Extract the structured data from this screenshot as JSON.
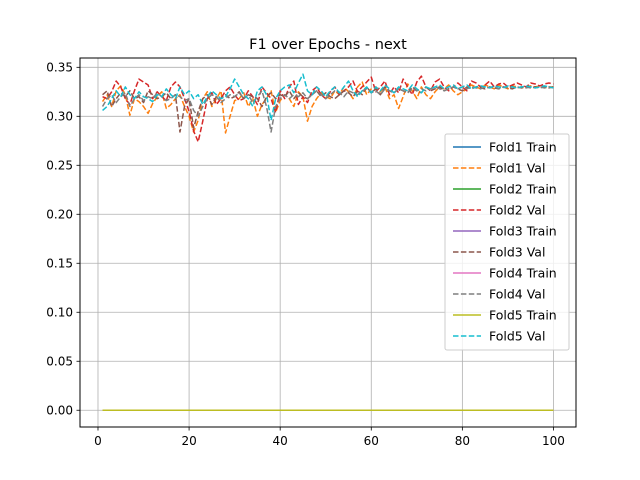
{
  "chart_data": {
    "type": "line",
    "title": "F1 over Epochs - next",
    "xlabel": "",
    "ylabel": "",
    "xlim": [
      -3.95,
      104.95
    ],
    "ylim": [
      -0.0171,
      0.3595
    ],
    "xticks": [
      0,
      20,
      40,
      60,
      80,
      100
    ],
    "xtick_labels": [
      "0",
      "20",
      "40",
      "60",
      "80",
      "100"
    ],
    "yticks": [
      0.0,
      0.05,
      0.1,
      0.15,
      0.2,
      0.25,
      0.3,
      0.35
    ],
    "ytick_labels": [
      "0.00",
      "0.05",
      "0.10",
      "0.15",
      "0.20",
      "0.25",
      "0.30",
      "0.35"
    ],
    "grid": true,
    "legend_position": "center-right",
    "x_range": [
      1,
      100
    ],
    "train_value": 0.0,
    "series": [
      {
        "name": "Fold1 Train",
        "color": "#1f77b4",
        "dash": "solid",
        "values": [
          0
        ]
      },
      {
        "name": "Fold1 Val",
        "color": "#ff7f0e",
        "dash": "dashed",
        "values": [
          0.315,
          0.322,
          0.31,
          0.326,
          0.331,
          0.322,
          0.301,
          0.318,
          0.315,
          0.31,
          0.303,
          0.313,
          0.32,
          0.325,
          0.308,
          0.312,
          0.318,
          0.322,
          0.31,
          0.3,
          0.284,
          0.296,
          0.318,
          0.325,
          0.31,
          0.318,
          0.326,
          0.283,
          0.3,
          0.316,
          0.318,
          0.324,
          0.31,
          0.318,
          0.3,
          0.312,
          0.318,
          0.326,
          0.304,
          0.316,
          0.322,
          0.318,
          0.31,
          0.325,
          0.32,
          0.295,
          0.31,
          0.318,
          0.324,
          0.32,
          0.318,
          0.326,
          0.322,
          0.33,
          0.325,
          0.318,
          0.33,
          0.335,
          0.322,
          0.328,
          0.33,
          0.325,
          0.33,
          0.318,
          0.322,
          0.308,
          0.32,
          0.333,
          0.326,
          0.318,
          0.33,
          0.322,
          0.318,
          0.325,
          0.33,
          0.328,
          0.332,
          0.326,
          0.322,
          0.325,
          0.328,
          0.332,
          0.33,
          0.328,
          0.332,
          0.33,
          0.328,
          0.332,
          0.33,
          0.328,
          0.331,
          0.33,
          0.329,
          0.33,
          0.331,
          0.33,
          0.331,
          0.329,
          0.33,
          0.33
        ]
      },
      {
        "name": "Fold2 Train",
        "color": "#2ca02c",
        "dash": "solid",
        "values": [
          0
        ]
      },
      {
        "name": "Fold2 Val",
        "color": "#d62728",
        "dash": "dashed",
        "values": [
          0.32,
          0.318,
          0.325,
          0.336,
          0.33,
          0.318,
          0.312,
          0.326,
          0.338,
          0.335,
          0.332,
          0.318,
          0.325,
          0.32,
          0.316,
          0.33,
          0.335,
          0.33,
          0.318,
          0.305,
          0.285,
          0.274,
          0.295,
          0.318,
          0.324,
          0.312,
          0.318,
          0.326,
          0.33,
          0.322,
          0.316,
          0.318,
          0.326,
          0.32,
          0.312,
          0.33,
          0.324,
          0.318,
          0.304,
          0.326,
          0.318,
          0.33,
          0.336,
          0.312,
          0.32,
          0.314,
          0.326,
          0.33,
          0.322,
          0.318,
          0.325,
          0.33,
          0.322,
          0.326,
          0.33,
          0.336,
          0.325,
          0.33,
          0.335,
          0.34,
          0.325,
          0.33,
          0.336,
          0.322,
          0.33,
          0.324,
          0.338,
          0.33,
          0.322,
          0.335,
          0.341,
          0.33,
          0.326,
          0.335,
          0.338,
          0.33,
          0.326,
          0.33,
          0.334,
          0.33,
          0.326,
          0.336,
          0.334,
          0.33,
          0.332,
          0.336,
          0.33,
          0.333,
          0.334,
          0.33,
          0.332,
          0.334,
          0.332,
          0.33,
          0.334,
          0.333,
          0.331,
          0.333,
          0.334,
          0.333
        ]
      },
      {
        "name": "Fold3 Train",
        "color": "#9467bd",
        "dash": "solid",
        "values": [
          0
        ]
      },
      {
        "name": "Fold3 Val",
        "color": "#8c564b",
        "dash": "dashed",
        "values": [
          0.322,
          0.326,
          0.31,
          0.318,
          0.324,
          0.32,
          0.326,
          0.318,
          0.32,
          0.314,
          0.326,
          0.322,
          0.318,
          0.32,
          0.324,
          0.318,
          0.322,
          0.284,
          0.31,
          0.318,
          0.288,
          0.305,
          0.318,
          0.322,
          0.312,
          0.32,
          0.318,
          0.322,
          0.318,
          0.32,
          0.325,
          0.318,
          0.322,
          0.32,
          0.318,
          0.31,
          0.32,
          0.324,
          0.318,
          0.322,
          0.32,
          0.326,
          0.318,
          0.324,
          0.32,
          0.318,
          0.322,
          0.326,
          0.32,
          0.324,
          0.32,
          0.318,
          0.322,
          0.326,
          0.324,
          0.32,
          0.326,
          0.322,
          0.33,
          0.324,
          0.328,
          0.322,
          0.33,
          0.326,
          0.324,
          0.328,
          0.326,
          0.324,
          0.33,
          0.326,
          0.324,
          0.33,
          0.326,
          0.328,
          0.33,
          0.326,
          0.328,
          0.33,
          0.328,
          0.326,
          0.33,
          0.328,
          0.33,
          0.329,
          0.328,
          0.33,
          0.329,
          0.328,
          0.33,
          0.329,
          0.328,
          0.33,
          0.329,
          0.33,
          0.329,
          0.33,
          0.329,
          0.33,
          0.329,
          0.33
        ]
      },
      {
        "name": "Fold4 Train",
        "color": "#e377c2",
        "dash": "solid",
        "values": [
          0
        ]
      },
      {
        "name": "Fold4 Val",
        "color": "#7f7f7f",
        "dash": "dashed",
        "values": [
          0.31,
          0.318,
          0.322,
          0.314,
          0.32,
          0.324,
          0.31,
          0.318,
          0.322,
          0.316,
          0.32,
          0.318,
          0.324,
          0.32,
          0.316,
          0.318,
          0.322,
          0.32,
          0.316,
          0.318,
          0.306,
          0.3,
          0.31,
          0.318,
          0.322,
          0.32,
          0.314,
          0.318,
          0.322,
          0.32,
          0.324,
          0.318,
          0.322,
          0.314,
          0.32,
          0.326,
          0.31,
          0.284,
          0.31,
          0.318,
          0.322,
          0.318,
          0.322,
          0.32,
          0.324,
          0.318,
          0.322,
          0.326,
          0.322,
          0.318,
          0.322,
          0.326,
          0.324,
          0.32,
          0.326,
          0.324,
          0.322,
          0.326,
          0.328,
          0.324,
          0.326,
          0.322,
          0.328,
          0.326,
          0.324,
          0.328,
          0.326,
          0.324,
          0.328,
          0.326,
          0.328,
          0.326,
          0.328,
          0.33,
          0.328,
          0.326,
          0.328,
          0.33,
          0.328,
          0.33,
          0.328,
          0.33,
          0.329,
          0.328,
          0.33,
          0.329,
          0.33,
          0.328,
          0.33,
          0.329,
          0.33,
          0.329,
          0.33,
          0.329,
          0.33,
          0.329,
          0.33,
          0.329,
          0.33,
          0.329
        ]
      },
      {
        "name": "Fold5 Train",
        "color": "#bcbd22",
        "dash": "solid",
        "values": [
          0
        ]
      },
      {
        "name": "Fold5 Val",
        "color": "#17becf",
        "dash": "dashed",
        "values": [
          0.306,
          0.31,
          0.318,
          0.326,
          0.32,
          0.33,
          0.322,
          0.318,
          0.325,
          0.32,
          0.318,
          0.315,
          0.322,
          0.32,
          0.328,
          0.322,
          0.318,
          0.33,
          0.322,
          0.326,
          0.318,
          0.322,
          0.312,
          0.32,
          0.326,
          0.322,
          0.318,
          0.32,
          0.328,
          0.338,
          0.33,
          0.322,
          0.318,
          0.31,
          0.326,
          0.33,
          0.322,
          0.296,
          0.318,
          0.326,
          0.33,
          0.332,
          0.324,
          0.334,
          0.343,
          0.326,
          0.322,
          0.33,
          0.326,
          0.32,
          0.326,
          0.33,
          0.324,
          0.33,
          0.336,
          0.326,
          0.32,
          0.326,
          0.33,
          0.324,
          0.33,
          0.326,
          0.332,
          0.328,
          0.324,
          0.33,
          0.328,
          0.326,
          0.332,
          0.328,
          0.324,
          0.33,
          0.328,
          0.33,
          0.332,
          0.328,
          0.33,
          0.332,
          0.328,
          0.33,
          0.332,
          0.328,
          0.33,
          0.331,
          0.33,
          0.329,
          0.331,
          0.33,
          0.329,
          0.331,
          0.33,
          0.329,
          0.33,
          0.331,
          0.33,
          0.329,
          0.33,
          0.331,
          0.33,
          0.329
        ]
      }
    ]
  }
}
